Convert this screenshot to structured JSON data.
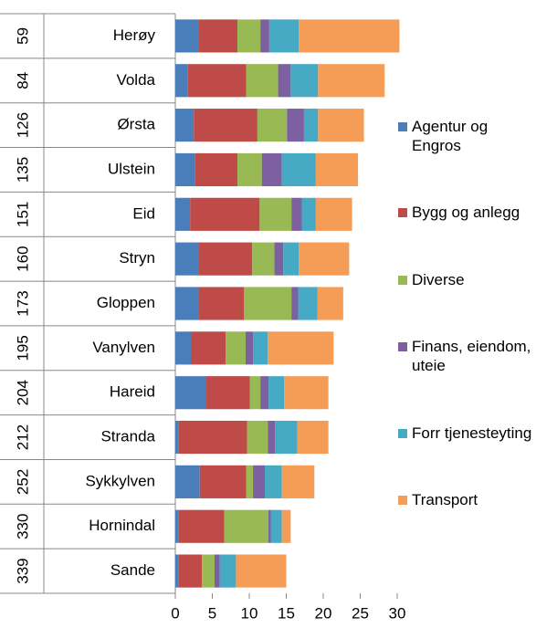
{
  "chart_data": {
    "type": "stacked_bar_horizontal",
    "categories": [
      "Herøy",
      "Volda",
      "Ørsta",
      "Ulstein",
      "Eid",
      "Stryn",
      "Gloppen",
      "Vanylven",
      "Hareid",
      "Stranda",
      "Sykkylven",
      "Hornindal",
      "Sande"
    ],
    "category_codes": [
      "59",
      "84",
      "126",
      "135",
      "151",
      "160",
      "173",
      "195",
      "204",
      "212",
      "252",
      "330",
      "339"
    ],
    "series": [
      {
        "name": "Agentur og Engros",
        "color": "#4a7ebb",
        "values": [
          3.1,
          1.7,
          2.5,
          2.7,
          2.0,
          3.1,
          3.1,
          2.1,
          4.2,
          0.4,
          3.3,
          0.4,
          0.4
        ]
      },
      {
        "name": "Bygg og anlegg",
        "color": "#be4b48",
        "values": [
          5.3,
          7.9,
          8.6,
          5.7,
          9.4,
          7.3,
          6.2,
          4.7,
          5.9,
          9.3,
          6.3,
          6.2,
          3.2
        ]
      },
      {
        "name": "Diverse",
        "color": "#98b954",
        "values": [
          3.1,
          4.3,
          4.0,
          3.3,
          4.3,
          3.0,
          6.4,
          2.7,
          1.4,
          2.8,
          0.9,
          6.0,
          1.7
        ]
      },
      {
        "name": "Finans, eiendom, uteie",
        "color": "#7d60a0",
        "values": [
          1.2,
          1.7,
          2.3,
          2.7,
          1.4,
          1.2,
          0.9,
          1.0,
          1.1,
          1.0,
          1.6,
          0.3,
          0.7
        ]
      },
      {
        "name": "Forr tjenesteyting",
        "color": "#46aac5",
        "values": [
          4.0,
          3.7,
          1.9,
          4.6,
          1.9,
          2.1,
          2.6,
          2.0,
          2.1,
          3.0,
          2.3,
          1.5,
          2.2
        ]
      },
      {
        "name": "Transport",
        "color": "#f59d56",
        "values": [
          13.6,
          9.0,
          6.2,
          5.7,
          4.9,
          6.8,
          3.5,
          8.9,
          6.0,
          4.2,
          4.4,
          1.2,
          6.8
        ]
      }
    ],
    "xlim": [
      0,
      30
    ],
    "xticks": [
      0,
      5,
      10,
      15,
      20,
      25,
      30
    ],
    "legend": "right"
  }
}
